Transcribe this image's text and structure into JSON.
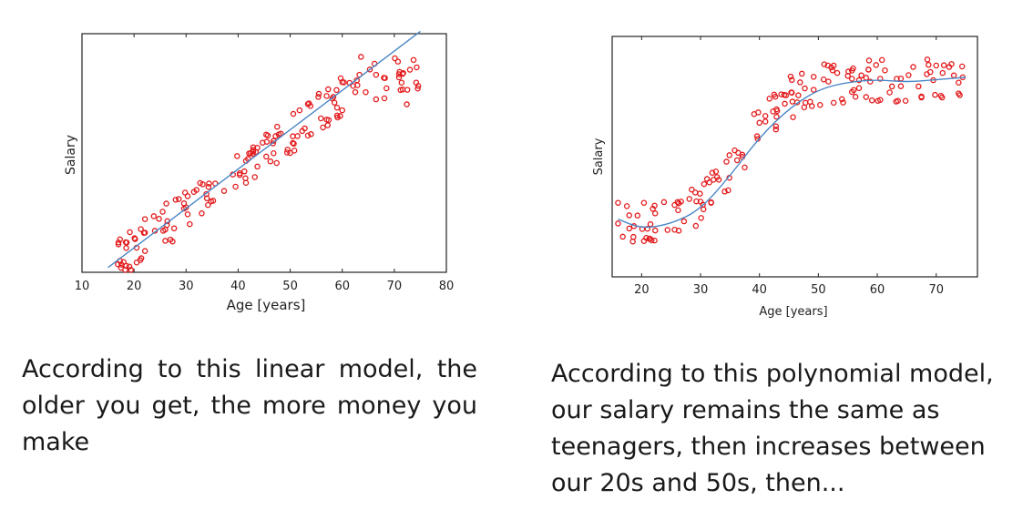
{
  "chart_data": [
    {
      "type": "scatter",
      "title": "",
      "xlabel": "Age [years]",
      "ylabel": "Salary",
      "xlim": [
        10,
        80
      ],
      "ylim": [
        0,
        100
      ],
      "x_ticks": [
        "10",
        "20",
        "30",
        "40",
        "50",
        "60",
        "70",
        "80"
      ],
      "grid": false,
      "marker_color": "#e31a1c",
      "fit_color": "#4a86c5",
      "fit": {
        "model": "linear",
        "x": [
          15,
          75
        ],
        "y": [
          2,
          101
        ]
      },
      "series": [
        {
          "values": []
        }
      ]
    },
    {
      "type": "scatter",
      "title": "",
      "xlabel": "Age [years]",
      "ylabel": "Salary",
      "xlim": [
        15,
        77
      ],
      "ylim": [
        0,
        100
      ],
      "x_ticks": [
        "20",
        "30",
        "40",
        "50",
        "60",
        "70"
      ],
      "grid": false,
      "marker_color": "#e31a1c",
      "fit_color": "#4a86c5",
      "fit": {
        "model": "polynomial",
        "x": [
          16,
          20,
          25,
          30,
          35,
          40,
          45,
          50,
          55,
          60,
          65,
          70,
          75
        ],
        "y": [
          24,
          20,
          22,
          28,
          42,
          58,
          70,
          78,
          81,
          82,
          81,
          82,
          83
        ]
      },
      "series": [
        {
          "values": []
        }
      ]
    }
  ],
  "captions": {
    "left": "According to this linear model, the older you get, the more money you make",
    "right": "According to this polynomial model, our salary remains the same as teenagers, then increases between our 20s and 50s, then..."
  }
}
